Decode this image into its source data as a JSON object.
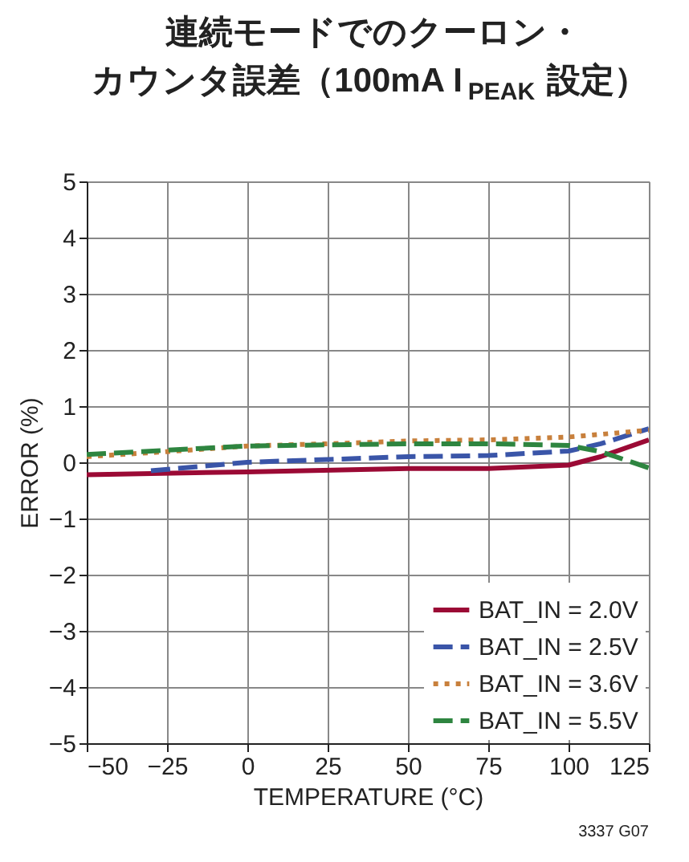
{
  "chart_data": {
    "type": "line",
    "title": [
      "連続モードでのクーロン・",
      "カウンタ誤差（100mA I$_{PEAK}$ 設定）"
    ],
    "xlabel": "TEMPERATURE (°C)",
    "ylabel": "ERROR (%)",
    "xlim": [
      -50,
      125
    ],
    "xticks": [
      {
        "value": -50,
        "label": "−50"
      },
      {
        "value": -25,
        "label": "−25"
      },
      0,
      25,
      50,
      75,
      100,
      125
    ],
    "ylim": [
      -5,
      5
    ],
    "yticks": [
      {
        "value": -5,
        "label": "−5"
      },
      {
        "value": -4,
        "label": "−4"
      },
      {
        "value": -3,
        "label": "−3"
      },
      {
        "value": -2,
        "label": "−2"
      },
      {
        "value": -1,
        "label": "−1"
      },
      0,
      1,
      2,
      3,
      4,
      5
    ],
    "grid": true,
    "legend": "bottom right",
    "annotations": [
      "3337 G07"
    ],
    "series": [
      {
        "name": "BAT_IN = 2.0V",
        "color": "#9b0a35",
        "line_style": "solid",
        "x": [
          -50,
          0,
          50,
          75,
          100,
          110,
          125
        ],
        "values": [
          -0.22,
          -0.17,
          -0.11,
          -0.11,
          -0.05,
          0.1,
          0.4
        ]
      },
      {
        "name": "BAT_IN = 2.5V",
        "color": "#3a55a8",
        "line_style": "dashed",
        "x": [
          -30,
          0,
          25,
          50,
          75,
          100,
          110,
          125
        ],
        "values": [
          -0.15,
          0.0,
          0.05,
          0.1,
          0.12,
          0.2,
          0.33,
          0.6
        ]
      },
      {
        "name": "BAT_IN = 3.6V",
        "color": "#c8803c",
        "line_style": "dotted",
        "x": [
          -50,
          -25,
          0,
          25,
          50,
          75,
          100,
          125
        ],
        "values": [
          0.1,
          0.19,
          0.29,
          0.33,
          0.38,
          0.4,
          0.45,
          0.57
        ]
      },
      {
        "name": "BAT_IN = 5.5V",
        "color": "#2e8540",
        "line_style": "dashed",
        "x": [
          -50,
          0,
          50,
          75,
          100,
          110,
          125
        ],
        "values": [
          0.14,
          0.29,
          0.33,
          0.33,
          0.3,
          0.19,
          -0.1
        ]
      }
    ]
  }
}
